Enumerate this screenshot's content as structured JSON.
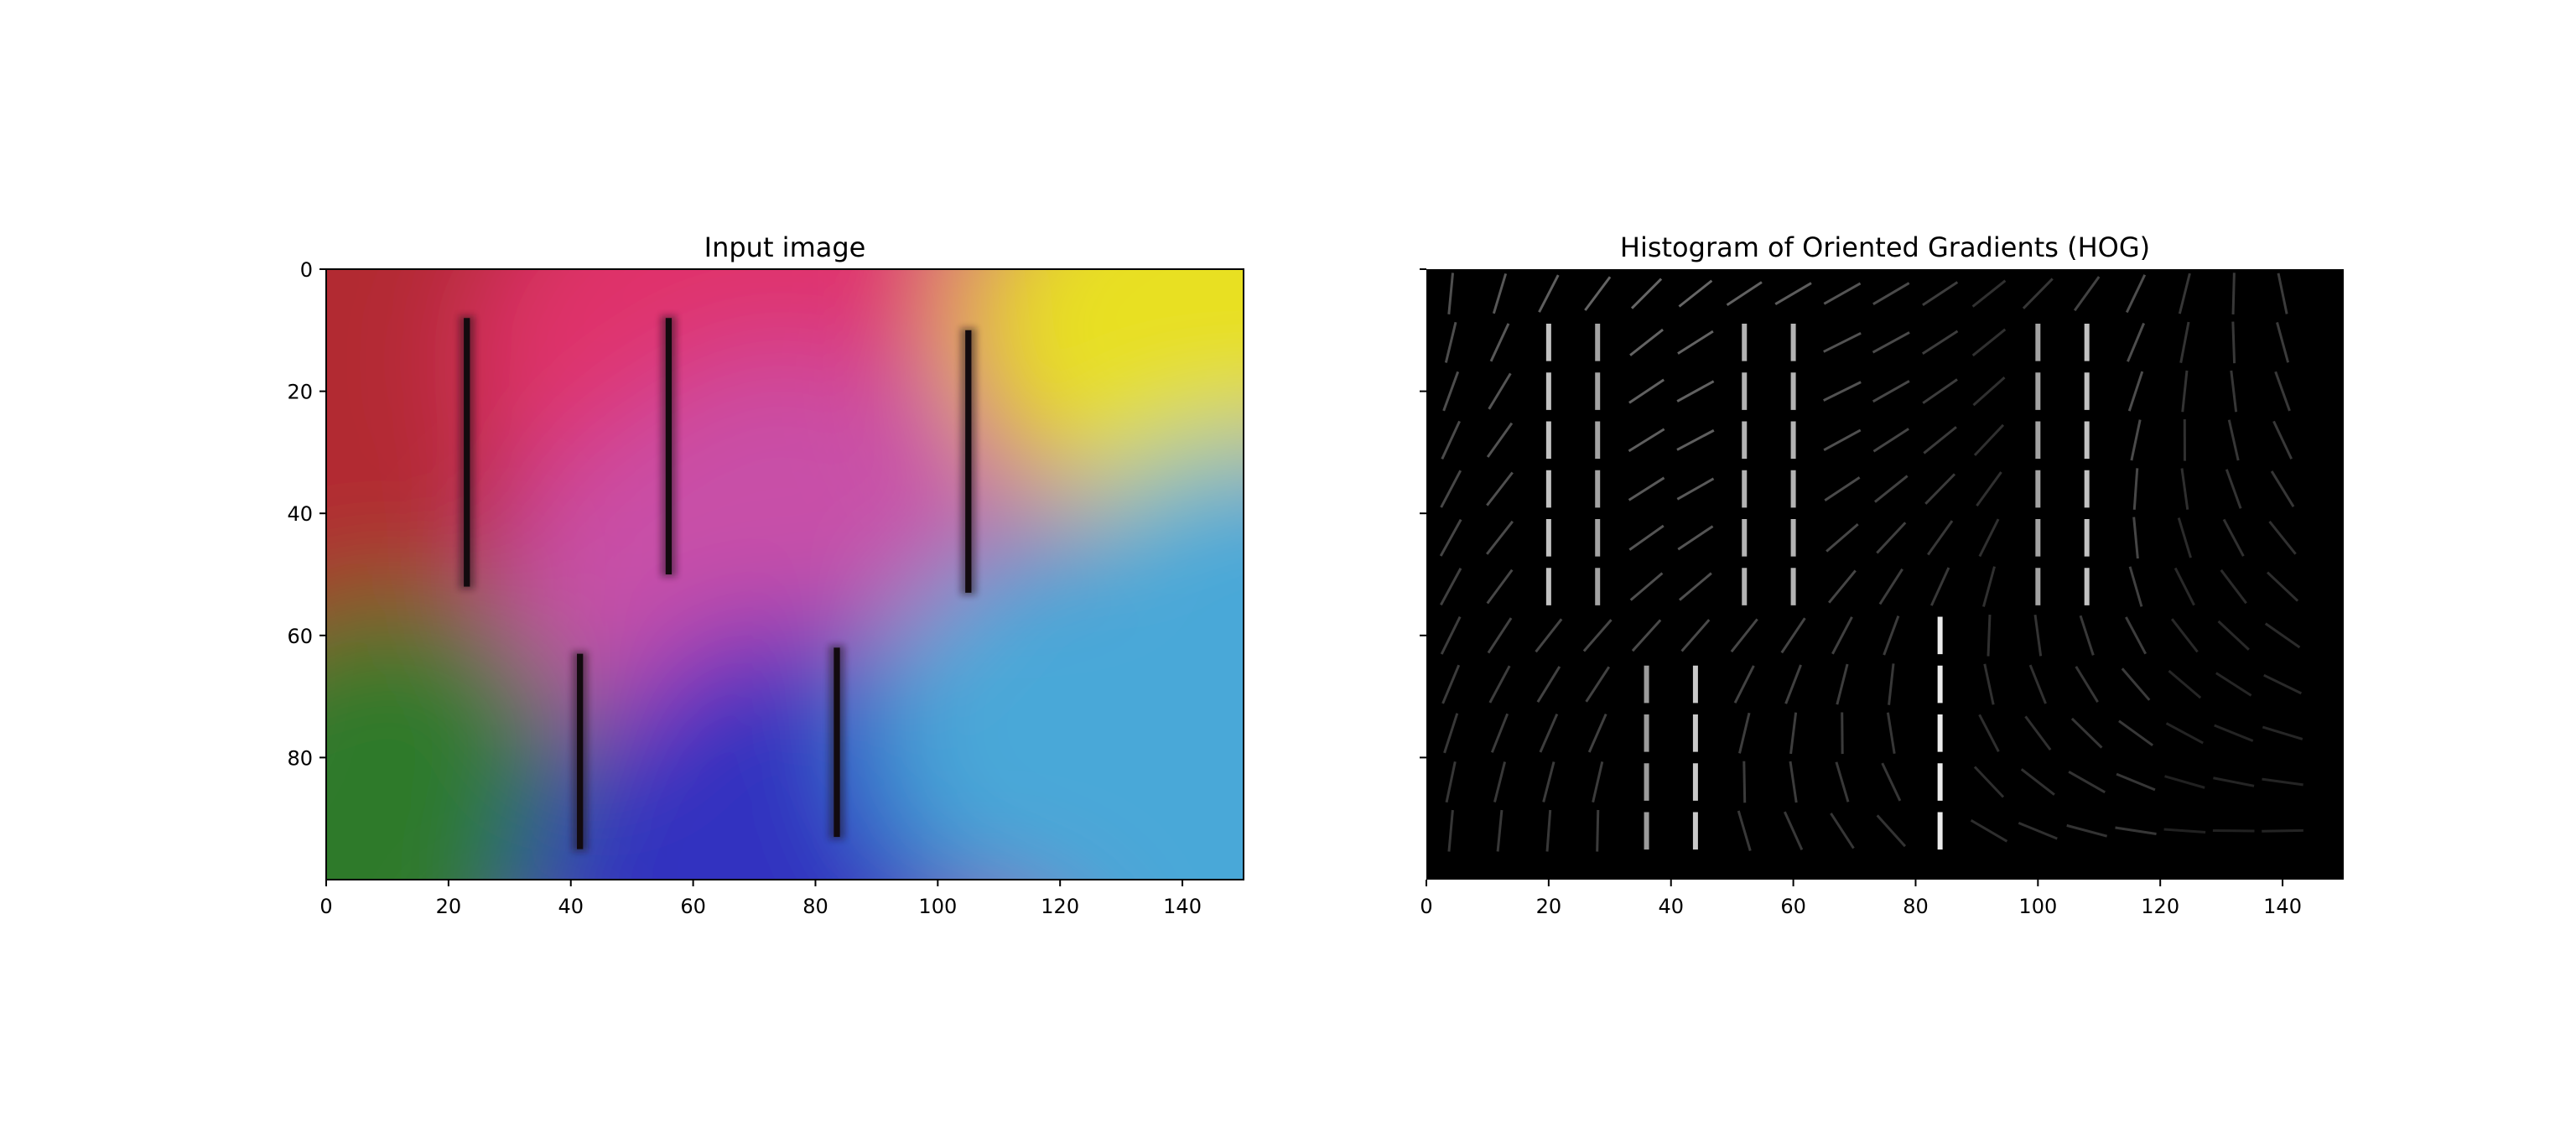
{
  "chart_data": [
    {
      "type": "image",
      "title": "Input image",
      "xlim": [
        0,
        150
      ],
      "ylim": [
        100,
        0
      ],
      "xticks": [
        0,
        20,
        40,
        60,
        80,
        100,
        120,
        140
      ],
      "yticks": [
        0,
        20,
        40,
        60,
        80
      ],
      "background_gradient": {
        "top_left": "#b22a30",
        "top_center": "#e0306a",
        "top_right": "#e8e020",
        "center": "#c850a8",
        "bottom_left": "#2e7a2a",
        "bottom_center": "#3030c0",
        "bottom_right": "#4aa8d8"
      },
      "bars": [
        {
          "x": 23,
          "y_start": 8,
          "y_end": 52
        },
        {
          "x": 56,
          "y_start": 8,
          "y_end": 50
        },
        {
          "x": 105,
          "y_start": 10,
          "y_end": 53
        },
        {
          "x": 41.5,
          "y_start": 63,
          "y_end": 95
        },
        {
          "x": 83.5,
          "y_start": 62,
          "y_end": 93
        }
      ]
    },
    {
      "type": "image",
      "title": "Histogram of Oriented Gradients (HOG)",
      "xlim": [
        0,
        150
      ],
      "ylim": [
        100,
        0
      ],
      "xticks": [
        0,
        20,
        40,
        60,
        80,
        100,
        120,
        140
      ],
      "yticks": [
        0,
        20,
        40,
        60,
        80
      ],
      "show_ytick_labels": false,
      "cell_size": 8,
      "colors": {
        "background": "#000000",
        "gradient": "#ffffff"
      }
    }
  ]
}
